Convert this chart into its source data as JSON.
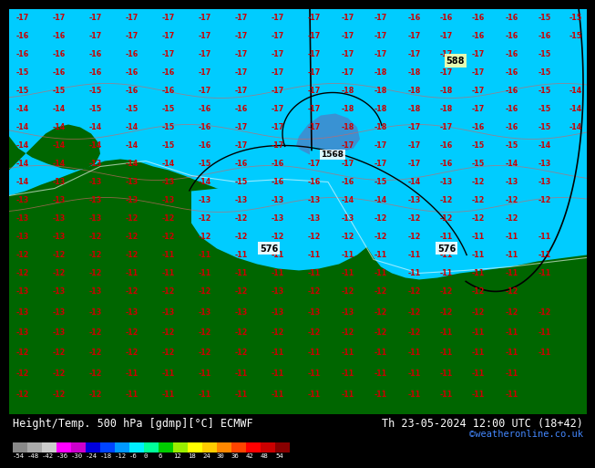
{
  "title_left": "Height/Temp. 500 hPa [gdmp][°C] ECMWF",
  "title_right": "Th 23-05-2024 12:00 UTC (18+42)",
  "credit": "©weatheronline.co.uk",
  "colorbar_values": [
    "-54",
    "-48",
    "-42",
    "-36",
    "-30",
    "-24",
    "-18",
    "-12",
    "-6",
    "0",
    "6",
    "12",
    "18",
    "24",
    "30",
    "36",
    "42",
    "48",
    "54"
  ],
  "colorbar_colors": [
    "#888888",
    "#aaaaaa",
    "#cccccc",
    "#ff00ff",
    "#cc00cc",
    "#0000dd",
    "#0044ff",
    "#0099ff",
    "#00eeff",
    "#00ff99",
    "#00cc00",
    "#99ee00",
    "#ffff00",
    "#ffcc00",
    "#ff8800",
    "#ff4400",
    "#ff0000",
    "#cc0000",
    "#880000"
  ],
  "bg_color": "#000000",
  "ocean_color": "#00ccff",
  "deep_ocean_color": "#55aaff",
  "cold_pool_color": "#4488cc",
  "land_dark_color": "#006600",
  "land_light_color": "#228822",
  "contour_label_color": "#cc0000",
  "geopot_label_color": "#000000",
  "geopot_bg_color": "#ffffcc",
  "credit_color": "#4488ff",
  "fig_width": 6.34,
  "fig_height": 4.9,
  "title_fontsize": 8.5,
  "credit_fontsize": 7.5,
  "label_fontsize": 5.8
}
